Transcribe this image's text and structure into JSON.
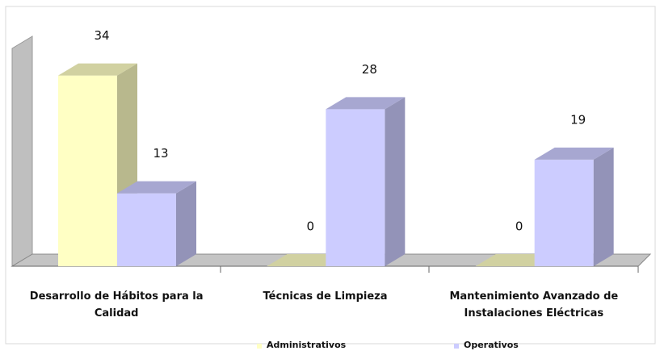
{
  "chart_data": {
    "type": "bar3d",
    "categories": [
      "Desarrollo de Hábitos para la Calidad",
      "Técnicas de Limpieza",
      "Mantenimiento Avanzado de Instalaciones Eléctricas"
    ],
    "series": [
      {
        "name": "Administrativos",
        "color": "#ffffc4",
        "values": [
          34,
          0,
          0
        ]
      },
      {
        "name": "Operativos",
        "color": "#ccccff",
        "values": [
          13,
          28,
          19
        ]
      }
    ],
    "ylim": [
      0,
      42
    ],
    "legend": "bottom"
  }
}
